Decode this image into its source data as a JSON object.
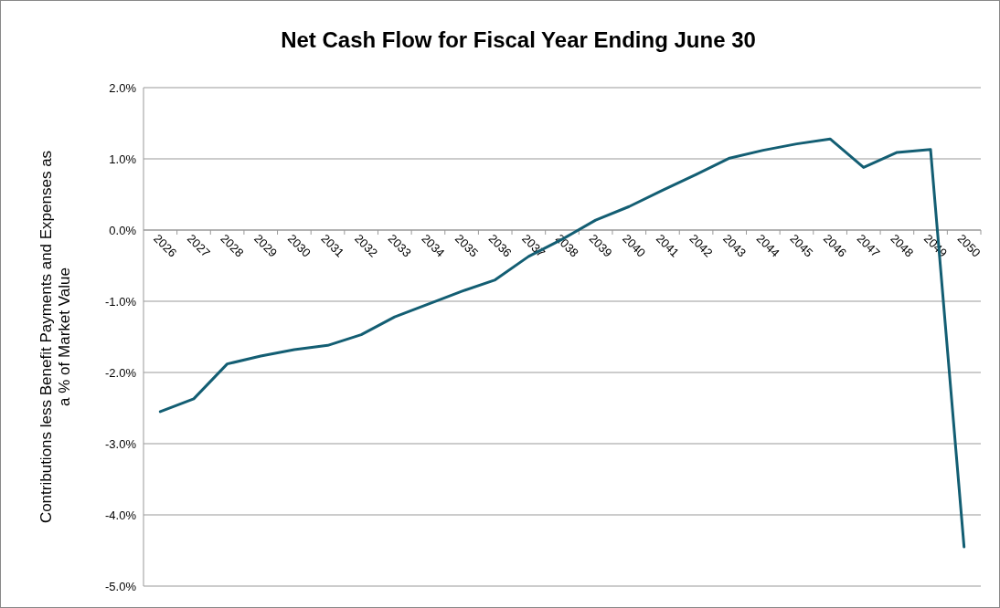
{
  "chart_data": {
    "type": "line",
    "title": "Net Cash Flow for Fiscal Year Ending June 30",
    "ylabel": "Contributions less Benefit Payments and Expenses as a % of Market Value",
    "categories": [
      "2026",
      "2027",
      "2028",
      "2029",
      "2030",
      "2031",
      "2032",
      "2033",
      "2034",
      "2035",
      "2036",
      "2037",
      "2038",
      "2039",
      "2040",
      "2041",
      "2042",
      "2043",
      "2044",
      "2045",
      "2046",
      "2047",
      "2048",
      "2049",
      "2050"
    ],
    "series": [
      {
        "color": "#135e73",
        "values": [
          -2.55,
          -2.37,
          -1.88,
          -1.77,
          -1.68,
          -1.62,
          -1.47,
          -1.22,
          -1.04,
          -0.86,
          -0.7,
          -0.37,
          -0.13,
          0.14,
          0.33,
          0.56,
          0.78,
          1.01,
          1.12,
          1.21,
          1.28,
          0.88,
          1.09,
          1.13,
          -4.45
        ]
      }
    ],
    "ylim": [
      -5,
      2
    ],
    "yticks": [
      {
        "value": -5,
        "label": "-5.0%"
      },
      {
        "value": -4,
        "label": "-4.0%"
      },
      {
        "value": -3,
        "label": "-3.0%"
      },
      {
        "value": -2,
        "label": "-2.0%"
      },
      {
        "value": -1,
        "label": "-1.0%"
      },
      {
        "value": 0,
        "label": "0.0%"
      },
      {
        "value": 1,
        "label": "1.0%"
      },
      {
        "value": 2,
        "label": "2.0%"
      }
    ],
    "grid": "y",
    "marker": "none",
    "line_style": "solid"
  }
}
